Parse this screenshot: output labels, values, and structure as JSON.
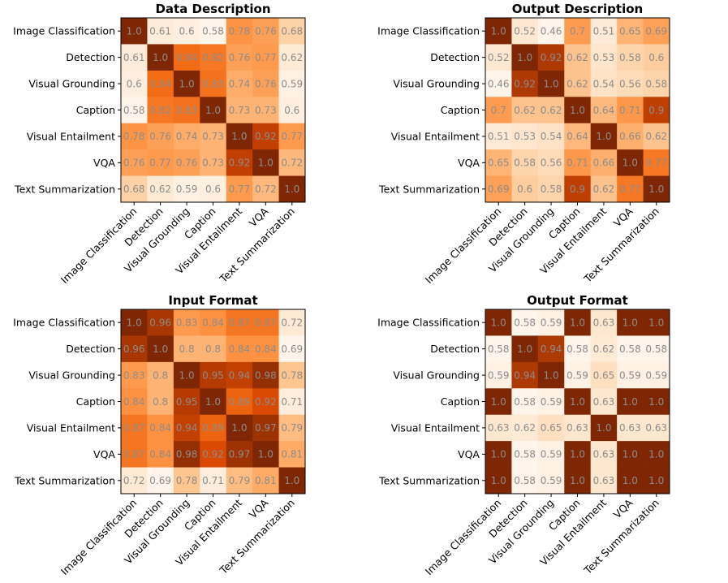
{
  "chart_data": [
    {
      "type": "heatmap",
      "title": "Data Description",
      "categories": [
        "Image Classification",
        "Detection",
        "Visual Grounding",
        "Caption",
        "Visual Entailment",
        "VQA",
        "Text Summarization"
      ],
      "values": [
        [
          1.0,
          0.61,
          0.6,
          0.58,
          0.78,
          0.76,
          0.68
        ],
        [
          0.61,
          1.0,
          0.84,
          0.82,
          0.76,
          0.77,
          0.62
        ],
        [
          0.6,
          0.84,
          1.0,
          0.83,
          0.74,
          0.76,
          0.59
        ],
        [
          0.58,
          0.82,
          0.83,
          1.0,
          0.73,
          0.73,
          0.6
        ],
        [
          0.78,
          0.76,
          0.74,
          0.73,
          1.0,
          0.92,
          0.77
        ],
        [
          0.76,
          0.77,
          0.76,
          0.73,
          0.92,
          1.0,
          0.72
        ],
        [
          0.68,
          0.62,
          0.59,
          0.6,
          0.77,
          0.72,
          1.0
        ]
      ],
      "labels": [
        [
          "1.0",
          "0.61",
          "0.6",
          "0.58",
          "0.78",
          "0.76",
          "0.68"
        ],
        [
          "0.61",
          "1.0",
          "0.84",
          "0.82",
          "0.76",
          "0.77",
          "0.62"
        ],
        [
          "0.6",
          "0.84",
          "1.0",
          "0.83",
          "0.74",
          "0.76",
          "0.59"
        ],
        [
          "0.58",
          "0.82",
          "0.83",
          "1.0",
          "0.73",
          "0.73",
          "0.6"
        ],
        [
          "0.78",
          "0.76",
          "0.74",
          "0.73",
          "1.0",
          "0.92",
          "0.77"
        ],
        [
          "0.76",
          "0.77",
          "0.76",
          "0.73",
          "0.92",
          "1.0",
          "0.72"
        ],
        [
          "0.68",
          "0.62",
          "0.59",
          "0.6",
          "0.77",
          "0.72",
          "1.0"
        ]
      ],
      "colormap": "Oranges"
    },
    {
      "type": "heatmap",
      "title": "Output Description",
      "categories": [
        "Image Classification",
        "Detection",
        "Visual Grounding",
        "Caption",
        "Visual Entailment",
        "VQA",
        "Text Summarization"
      ],
      "values": [
        [
          1.0,
          0.52,
          0.46,
          0.7,
          0.51,
          0.65,
          0.69
        ],
        [
          0.52,
          1.0,
          0.92,
          0.62,
          0.53,
          0.58,
          0.6
        ],
        [
          0.46,
          0.92,
          1.0,
          0.62,
          0.54,
          0.56,
          0.58
        ],
        [
          0.7,
          0.62,
          0.62,
          1.0,
          0.64,
          0.71,
          0.9
        ],
        [
          0.51,
          0.53,
          0.54,
          0.64,
          1.0,
          0.66,
          0.62
        ],
        [
          0.65,
          0.58,
          0.56,
          0.71,
          0.66,
          1.0,
          0.77
        ],
        [
          0.69,
          0.6,
          0.58,
          0.9,
          0.62,
          0.77,
          1.0
        ]
      ],
      "labels": [
        [
          "1.0",
          "0.52",
          "0.46",
          "0.7",
          "0.51",
          "0.65",
          "0.69"
        ],
        [
          "0.52",
          "1.0",
          "0.92",
          "0.62",
          "0.53",
          "0.58",
          "0.6"
        ],
        [
          "0.46",
          "0.92",
          "1.0",
          "0.62",
          "0.54",
          "0.56",
          "0.58"
        ],
        [
          "0.7",
          "0.62",
          "0.62",
          "1.0",
          "0.64",
          "0.71",
          "0.9"
        ],
        [
          "0.51",
          "0.53",
          "0.54",
          "0.64",
          "1.0",
          "0.66",
          "0.62"
        ],
        [
          "0.65",
          "0.58",
          "0.56",
          "0.71",
          "0.66",
          "1.0",
          "0.77"
        ],
        [
          "0.69",
          "0.6",
          "0.58",
          "0.9",
          "0.62",
          "0.77",
          "1.0"
        ]
      ],
      "colormap": "Oranges"
    },
    {
      "type": "heatmap",
      "title": "Input Format",
      "categories": [
        "Image Classification",
        "Detection",
        "Visual Grounding",
        "Caption",
        "Visual Entailment",
        "VQA",
        "Text Summarization"
      ],
      "values": [
        [
          1.0,
          0.96,
          0.83,
          0.84,
          0.87,
          0.87,
          0.72
        ],
        [
          0.96,
          1.0,
          0.8,
          0.8,
          0.84,
          0.84,
          0.69
        ],
        [
          0.83,
          0.8,
          1.0,
          0.95,
          0.94,
          0.98,
          0.78
        ],
        [
          0.84,
          0.8,
          0.95,
          1.0,
          0.89,
          0.92,
          0.71
        ],
        [
          0.87,
          0.84,
          0.94,
          0.89,
          1.0,
          0.97,
          0.79
        ],
        [
          0.87,
          0.84,
          0.98,
          0.92,
          0.97,
          1.0,
          0.81
        ],
        [
          0.72,
          0.69,
          0.78,
          0.71,
          0.79,
          0.81,
          1.0
        ]
      ],
      "labels": [
        [
          "1.0",
          "0.96",
          "0.83",
          "0.84",
          "0.87",
          "0.87",
          "0.72"
        ],
        [
          "0.96",
          "1.0",
          "0.8",
          "0.8",
          "0.84",
          "0.84",
          "0.69"
        ],
        [
          "0.83",
          "0.8",
          "1.0",
          "0.95",
          "0.94",
          "0.98",
          "0.78"
        ],
        [
          "0.84",
          "0.8",
          "0.95",
          "1.0",
          "0.89",
          "0.92",
          "0.71"
        ],
        [
          "0.87",
          "0.84",
          "0.94",
          "0.89",
          "1.0",
          "0.97",
          "0.79"
        ],
        [
          "0.87",
          "0.84",
          "0.98",
          "0.92",
          "0.97",
          "1.0",
          "0.81"
        ],
        [
          "0.72",
          "0.69",
          "0.78",
          "0.71",
          "0.79",
          "0.81",
          "1.0"
        ]
      ],
      "colormap": "Oranges"
    },
    {
      "type": "heatmap",
      "title": "Output Format",
      "categories": [
        "Image Classification",
        "Detection",
        "Visual Grounding",
        "Caption",
        "Visual Entailment",
        "VQA",
        "Text Summarization"
      ],
      "values": [
        [
          1.0,
          0.58,
          0.59,
          1.0,
          0.63,
          1.0,
          1.0
        ],
        [
          0.58,
          1.0,
          0.94,
          0.58,
          0.62,
          0.58,
          0.58
        ],
        [
          0.59,
          0.94,
          1.0,
          0.59,
          0.65,
          0.59,
          0.59
        ],
        [
          1.0,
          0.58,
          0.59,
          1.0,
          0.63,
          1.0,
          1.0
        ],
        [
          0.63,
          0.62,
          0.65,
          0.63,
          1.0,
          0.63,
          0.63
        ],
        [
          1.0,
          0.58,
          0.59,
          1.0,
          0.63,
          1.0,
          1.0
        ],
        [
          1.0,
          0.58,
          0.59,
          1.0,
          0.63,
          1.0,
          1.0
        ]
      ],
      "labels": [
        [
          "1.0",
          "0.58",
          "0.59",
          "1.0",
          "0.63",
          "1.0",
          "1.0"
        ],
        [
          "0.58",
          "1.0",
          "0.94",
          "0.58",
          "0.62",
          "0.58",
          "0.58"
        ],
        [
          "0.59",
          "0.94",
          "1.0",
          "0.59",
          "0.65",
          "0.59",
          "0.59"
        ],
        [
          "1.0",
          "0.58",
          "0.59",
          "1.0",
          "0.63",
          "1.0",
          "1.0"
        ],
        [
          "0.63",
          "0.62",
          "0.65",
          "0.63",
          "1.0",
          "0.63",
          "0.63"
        ],
        [
          "1.0",
          "0.58",
          "0.59",
          "1.0",
          "0.63",
          "1.0",
          "1.0"
        ],
        [
          "1.0",
          "0.58",
          "0.59",
          "1.0",
          "0.63",
          "1.0",
          "1.0"
        ]
      ],
      "colormap": "Oranges"
    }
  ]
}
